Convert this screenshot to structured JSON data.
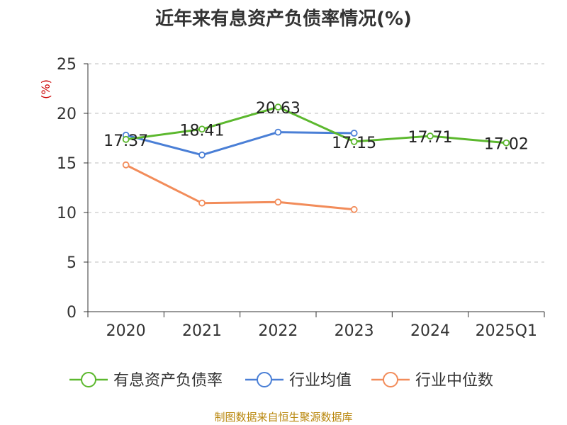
{
  "chart_data": {
    "type": "line",
    "title": "近年来有息资产负债率情况(%)",
    "ylabel": "(%)",
    "categories": [
      "2020",
      "2021",
      "2022",
      "2023",
      "2024",
      "2025Q1"
    ],
    "ylim": [
      0,
      25
    ],
    "yticks": [
      0,
      5,
      10,
      15,
      20,
      25
    ],
    "grid": true,
    "legend_position": "bottom",
    "series": [
      {
        "name": "有息资产负债率",
        "color": "#5cb82e",
        "values": [
          17.37,
          18.41,
          20.63,
          17.15,
          17.71,
          17.02
        ],
        "labels": [
          "17.37",
          "18.41",
          "20.63",
          "17.15",
          "17.71",
          "17.02"
        ]
      },
      {
        "name": "行业均值",
        "color": "#4a7fd6",
        "values": [
          17.8,
          15.8,
          18.1,
          18.0,
          null,
          null
        ]
      },
      {
        "name": "行业中位数",
        "color": "#f28c5a",
        "values": [
          14.8,
          10.95,
          11.05,
          10.3,
          null,
          null
        ]
      }
    ]
  },
  "source": "制图数据来自恒生聚源数据库"
}
